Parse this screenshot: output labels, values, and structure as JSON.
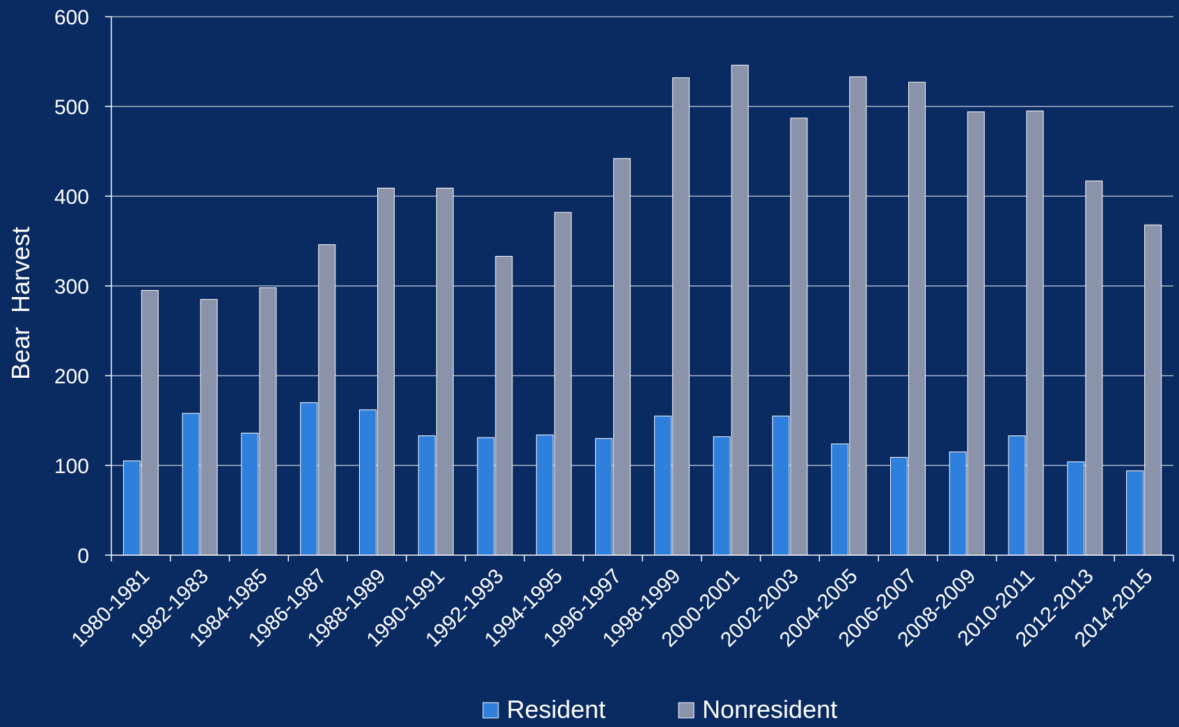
{
  "chart_data": {
    "type": "bar",
    "title": "",
    "xlabel": "",
    "ylabel": "Bear  Harvest",
    "ylim": [
      0,
      600
    ],
    "yticks": [
      0,
      100,
      200,
      300,
      400,
      500,
      600
    ],
    "grid": true,
    "legend_position": "bottom",
    "categories": [
      "1980-1981",
      "1982-1983",
      "1984-1985",
      "1986-1987",
      "1988-1989",
      "1990-1991",
      "1992-1993",
      "1994-1995",
      "1996-1997",
      "1998-1999",
      "2000-2001",
      "2002-2003",
      "2004-2005",
      "2006-2007",
      "2008-2009",
      "2010-2011",
      "2012-2013",
      "2014-2015"
    ],
    "series": [
      {
        "name": "Resident",
        "color": "#2f80dc",
        "values": [
          105,
          158,
          136,
          170,
          162,
          133,
          131,
          134,
          130,
          155,
          132,
          155,
          124,
          109,
          115,
          133,
          104,
          94
        ]
      },
      {
        "name": "Nonresident",
        "color": "#8a93aa",
        "values": [
          295,
          285,
          298,
          346,
          409,
          409,
          333,
          382,
          442,
          532,
          546,
          487,
          533,
          527,
          494,
          495,
          417,
          368
        ]
      }
    ]
  },
  "colors": {
    "background": "#0a2a62",
    "axis": "#ffffff",
    "grid": "#c8cfdc"
  }
}
